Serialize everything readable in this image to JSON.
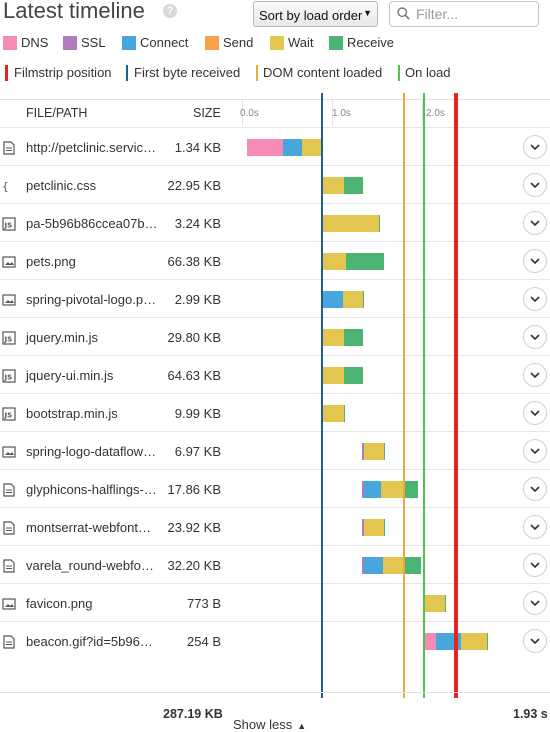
{
  "header": {
    "title": "Latest timeline",
    "help_icon": "?",
    "sort_selected": "Sort by load order",
    "filter_placeholder": "Filter..."
  },
  "legend": {
    "phases": [
      {
        "name": "DNS",
        "color": "#f68ab7"
      },
      {
        "name": "SSL",
        "color": "#b27bbd"
      },
      {
        "name": "Connect",
        "color": "#47a6db"
      },
      {
        "name": "Send",
        "color": "#f9a04d"
      },
      {
        "name": "Wait",
        "color": "#e2c64f"
      },
      {
        "name": "Receive",
        "color": "#4cb573"
      }
    ],
    "markers": [
      {
        "name": "Filmstrip position",
        "color": "#e52424"
      },
      {
        "name": "First byte received",
        "color": "#1e5c9e"
      },
      {
        "name": "DOM content loaded",
        "color": "#f0a73e"
      },
      {
        "name": "On load",
        "color": "#52c04c"
      }
    ]
  },
  "table": {
    "col_file": "FILE/PATH",
    "col_size": "SIZE",
    "ticks": [
      "0.0s",
      "1.0s",
      "2.0s"
    ],
    "rows": [
      {
        "icon": "document-icon",
        "name": "http://petclinic.servic…",
        "size": "1.34 KB"
      },
      {
        "icon": "css-icon",
        "name": "petclinic.css",
        "size": "22.95 KB"
      },
      {
        "icon": "js-icon",
        "name": "pa-5b96b86ccea07b…",
        "size": "3.24 KB"
      },
      {
        "icon": "image-icon",
        "name": "pets.png",
        "size": "66.38 KB"
      },
      {
        "icon": "image-icon",
        "name": "spring-pivotal-logo.p…",
        "size": "2.99 KB"
      },
      {
        "icon": "js-icon",
        "name": "jquery.min.js",
        "size": "29.80 KB"
      },
      {
        "icon": "js-icon",
        "name": "jquery-ui.min.js",
        "size": "64.63 KB"
      },
      {
        "icon": "js-icon",
        "name": "bootstrap.min.js",
        "size": "9.99 KB"
      },
      {
        "icon": "image-icon",
        "name": "spring-logo-dataflow…",
        "size": "6.97 KB"
      },
      {
        "icon": "document-icon",
        "name": "glyphicons-halflings-…",
        "size": "17.86 KB"
      },
      {
        "icon": "document-icon",
        "name": "montserrat-webfont…",
        "size": "23.92 KB"
      },
      {
        "icon": "document-icon",
        "name": "varela_round-webfo…",
        "size": "32.20 KB"
      },
      {
        "icon": "image-icon",
        "name": "favicon.png",
        "size": "773 B"
      },
      {
        "icon": "document-icon",
        "name": "beacon.gif?id=5b96…",
        "size": "254 B"
      }
    ]
  },
  "footer": {
    "total_size": "287.19 KB",
    "total_time": "1.93 s",
    "show_less": "Show less"
  }
}
